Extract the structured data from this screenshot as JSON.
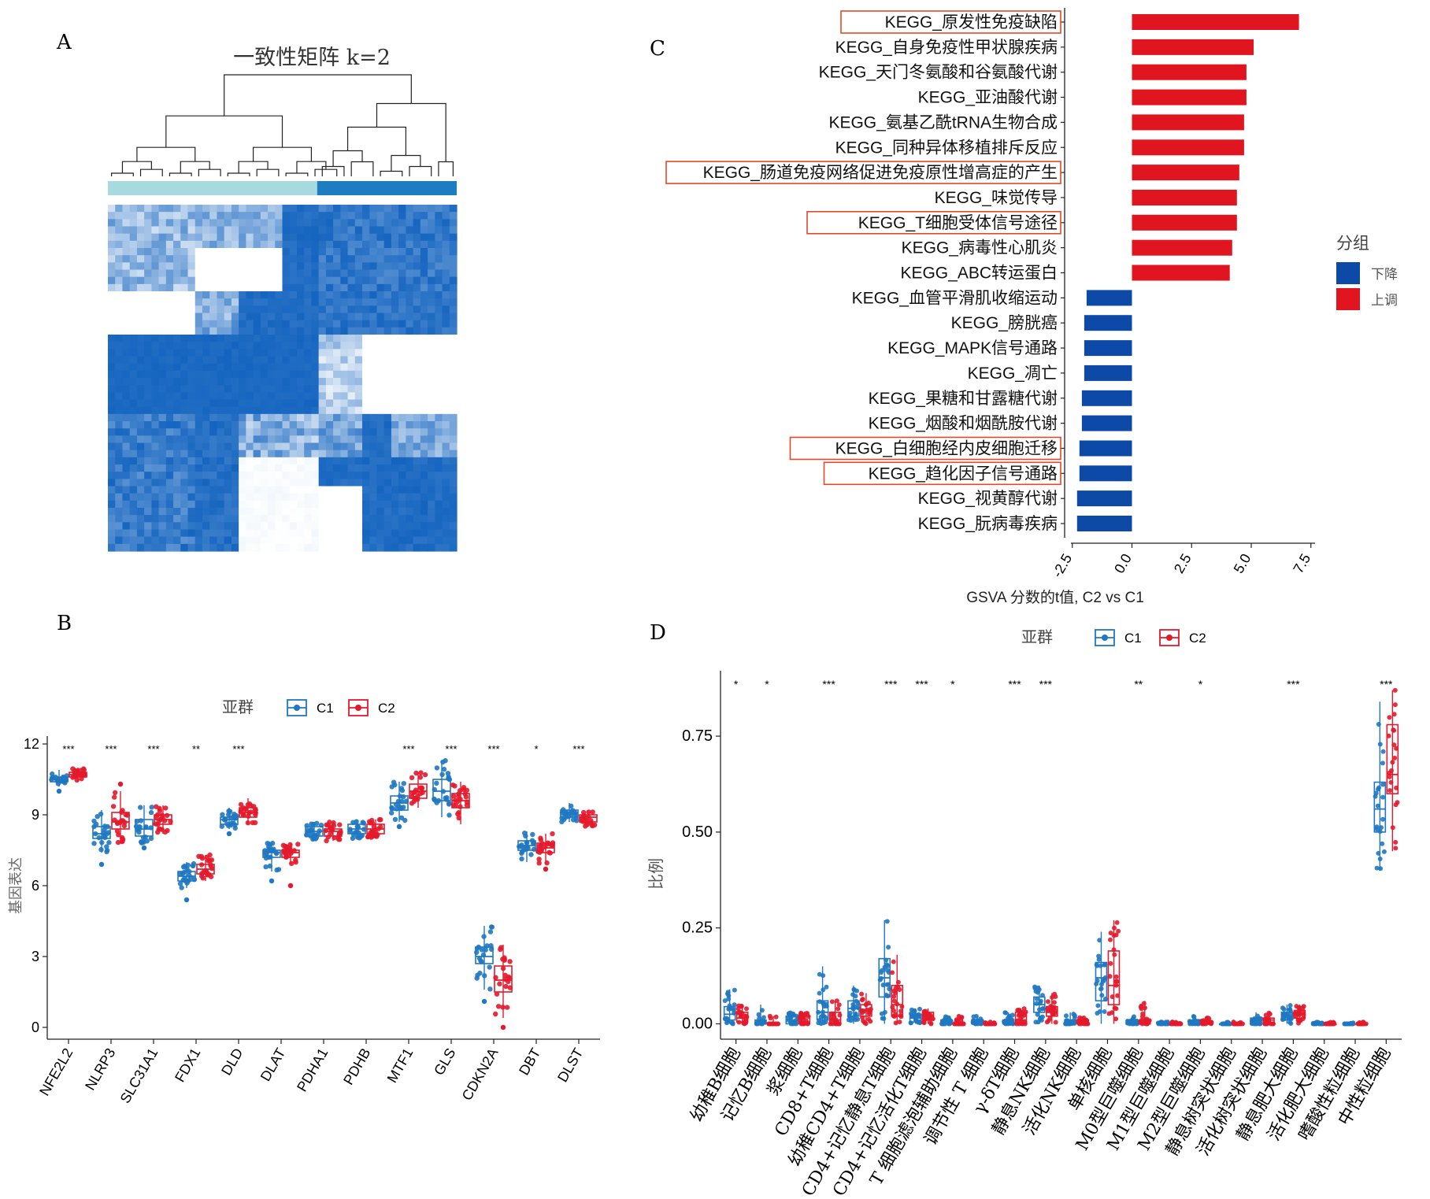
{
  "panel_labels": {
    "a": "A",
    "b": "B",
    "c": "C",
    "d": "D"
  },
  "colors": {
    "c1": "#1f78c1",
    "c2": "#e31a2c",
    "up": "#e0151f",
    "down": "#0d4aa8",
    "heat_high": "#1565c0",
    "heat_low": "#ffffff",
    "bar_c1": "#a8d8e0",
    "bar_c2": "#1c7dc1",
    "highlight": "#e04a2a"
  },
  "chart_data": [
    {
      "id": "A",
      "type": "heatmap",
      "title": "一致性矩阵 k=2",
      "clusters": [
        "C1",
        "C2"
      ],
      "cluster_fraction": [
        0.6,
        0.4
      ]
    },
    {
      "id": "B",
      "type": "box",
      "legend_title": "亚群",
      "legend": [
        "C1",
        "C2"
      ],
      "ylabel": "基因表达",
      "ylim": [
        -0.5,
        12
      ],
      "yticks": [
        0,
        3,
        6,
        9,
        12
      ],
      "categories": [
        "NFE2L2",
        "NLRP3",
        "SLC31A1",
        "FDX1",
        "DLD",
        "DLAT",
        "PDHA1",
        "PDHB",
        "MTF1",
        "GLS",
        "CDKN2A",
        "DBT",
        "DLST"
      ],
      "significance": [
        "***",
        "***",
        "***",
        "**",
        "***",
        "",
        "",
        "",
        "***",
        "***",
        "***",
        "*",
        "***"
      ],
      "series": [
        {
          "name": "C1",
          "stats": [
            [
              10.2,
              10.4,
              10.5,
              10.6,
              10.9
            ],
            [
              7.4,
              8.0,
              8.2,
              8.5,
              9.2
            ],
            [
              7.8,
              8.1,
              8.4,
              8.8,
              9.4
            ],
            [
              5.9,
              6.2,
              6.4,
              6.6,
              7.0
            ],
            [
              8.4,
              8.6,
              8.8,
              8.9,
              9.3
            ],
            [
              6.6,
              7.2,
              7.4,
              7.5,
              7.8
            ],
            [
              7.9,
              8.1,
              8.3,
              8.5,
              8.7
            ],
            [
              8.0,
              8.2,
              8.4,
              8.6,
              8.8
            ],
            [
              8.7,
              9.2,
              9.5,
              9.8,
              10.4
            ],
            [
              8.9,
              9.6,
              10.0,
              10.5,
              11.3
            ],
            [
              1.6,
              2.7,
              3.0,
              3.4,
              4.3
            ],
            [
              7.0,
              7.5,
              7.7,
              7.9,
              8.3
            ],
            [
              8.7,
              8.9,
              9.1,
              9.2,
              9.5
            ]
          ],
          "outliers": [
            [
              10.0
            ],
            [
              6.9
            ],
            [
              7.6
            ],
            [
              5.4
            ],
            [
              8.2
            ],
            [
              6.2
            ],
            [],
            [],
            [
              8.5
            ],
            [],
            [
              1.1
            ],
            [],
            []
          ]
        },
        {
          "name": "C2",
          "stats": [
            [
              10.4,
              10.6,
              10.7,
              10.8,
              11.0
            ],
            [
              7.8,
              8.4,
              8.7,
              9.1,
              10.0
            ],
            [
              8.2,
              8.6,
              8.8,
              9.0,
              9.4
            ],
            [
              6.2,
              6.5,
              6.7,
              6.9,
              7.3
            ],
            [
              8.6,
              8.9,
              9.1,
              9.3,
              9.7
            ],
            [
              6.9,
              7.2,
              7.4,
              7.5,
              7.8
            ],
            [
              7.9,
              8.1,
              8.3,
              8.4,
              8.7
            ],
            [
              8.0,
              8.2,
              8.4,
              8.6,
              8.8
            ],
            [
              9.3,
              9.7,
              10.0,
              10.3,
              10.8
            ],
            [
              8.6,
              9.3,
              9.6,
              9.9,
              10.4
            ],
            [
              0.4,
              1.5,
              2.0,
              2.6,
              3.5
            ],
            [
              6.9,
              7.4,
              7.6,
              7.8,
              8.2
            ],
            [
              8.5,
              8.7,
              8.9,
              9.0,
              9.2
            ]
          ],
          "outliers": [
            [],
            [
              10.3
            ],
            [],
            [],
            [],
            [
              6.0
            ],
            [],
            [],
            [],
            [],
            [
              0.0
            ],
            [
              6.7
            ],
            []
          ]
        }
      ]
    },
    {
      "id": "C",
      "type": "bar",
      "orientation": "horizontal",
      "legend_title": "分组",
      "legend": [
        "下降",
        "上调"
      ],
      "xlabel": "GSVA 分数的t值, C2 vs C1",
      "xlim": [
        -2.7,
        7.6
      ],
      "xticks": [
        "-2.5",
        "0.0",
        "2.5",
        "5.0",
        "7.5"
      ],
      "categories": [
        "KEGG_原发性免疫缺陷",
        "KEGG_自身免疫性甲状腺疾病",
        "KEGG_天门冬氨酸和谷氨酸代谢",
        "KEGG_亚油酸代谢",
        "KEGG_氨基乙酰tRNA生物合成",
        "KEGG_同种异体移植排斥反应",
        "KEGG_肠道免疫网络促进免疫原性增高症的产生",
        "KEGG_味觉传导",
        "KEGG_T细胞受体信号途径",
        "KEGG_病毒性心肌炎",
        "KEGG_ABC转运蛋白",
        "KEGG_血管平滑肌收缩运动",
        "KEGG_膀胱癌",
        "KEGG_MAPK信号通路",
        "KEGG_凋亡",
        "KEGG_果糖和甘露糖代谢",
        "KEGG_烟酸和烟酰胺代谢",
        "KEGG_白细胞经内皮细胞迁移",
        "KEGG_趋化因子信号通路",
        "KEGG_视黄醇代谢",
        "KEGG_朊病毒疾病"
      ],
      "values": [
        7.0,
        5.1,
        4.8,
        4.8,
        4.7,
        4.7,
        4.5,
        4.4,
        4.4,
        4.2,
        4.1,
        -1.9,
        -2.0,
        -2.0,
        -2.0,
        -2.1,
        -2.1,
        -2.2,
        -2.2,
        -2.3,
        -2.3
      ],
      "groups": [
        "上调",
        "上调",
        "上调",
        "上调",
        "上调",
        "上调",
        "上调",
        "上调",
        "上调",
        "上调",
        "上调",
        "下降",
        "下降",
        "下降",
        "下降",
        "下降",
        "下降",
        "下降",
        "下降",
        "下降",
        "下降"
      ],
      "highlighted": [
        true,
        false,
        false,
        false,
        false,
        false,
        true,
        false,
        true,
        false,
        false,
        false,
        false,
        false,
        false,
        false,
        false,
        true,
        true,
        false,
        false
      ]
    },
    {
      "id": "D",
      "type": "box",
      "legend_title": "亚群",
      "legend": [
        "C1",
        "C2"
      ],
      "ylabel": "比例",
      "ylim": [
        -0.04,
        0.9
      ],
      "yticks": [
        0.0,
        0.25,
        0.5,
        0.75
      ],
      "ytick_labels": [
        "0.00",
        "0.25",
        "0.50",
        "0.75"
      ],
      "categories": [
        "幼稚B细胞",
        "记忆B细胞",
        "浆细胞",
        "CD8+T细胞",
        "幼稚CD4+T细胞",
        "CD4+记忆静息T细胞",
        "CD4+记忆活化T细胞",
        "T 细胞滤泡辅助细胞",
        "调节性 T 细胞",
        "γ-δT细胞",
        "静息NK细胞",
        "活化NK细胞",
        "单核细胞",
        "M0型巨噬细胞",
        "M1型巨噬细胞",
        "M2型巨噬细胞",
        "静息树突状细胞",
        "活化树突状细胞",
        "静息肥大细胞",
        "活化肥大细胞",
        "嗜酸性粒细胞",
        "中性粒细胞"
      ],
      "significance": [
        "*",
        "*",
        "",
        "***",
        "",
        "***",
        "***",
        "*",
        "",
        "***",
        "***",
        "",
        "",
        "**",
        "",
        "*",
        "",
        "",
        "***",
        "",
        "",
        "***"
      ],
      "series": [
        {
          "name": "C1",
          "stats": [
            [
              0.0,
              0.01,
              0.025,
              0.045,
              0.09
            ],
            [
              0.0,
              0.0,
              0.0,
              0.01,
              0.05
            ],
            [
              0.0,
              0.0,
              0.01,
              0.02,
              0.03
            ],
            [
              0.0,
              0.01,
              0.03,
              0.06,
              0.15
            ],
            [
              0.0,
              0.02,
              0.04,
              0.06,
              0.1
            ],
            [
              0.0,
              0.07,
              0.12,
              0.17,
              0.27
            ],
            [
              0.0,
              0.005,
              0.015,
              0.025,
              0.04
            ],
            [
              0.0,
              0.0,
              0.0,
              0.01,
              0.02
            ],
            [
              0.0,
              0.0,
              0.0,
              0.01,
              0.02
            ],
            [
              0.0,
              0.0,
              0.005,
              0.01,
              0.03
            ],
            [
              0.0,
              0.03,
              0.05,
              0.07,
              0.1
            ],
            [
              0.0,
              0.0,
              0.0,
              0.01,
              0.03
            ],
            [
              0.0,
              0.06,
              0.12,
              0.16,
              0.24
            ],
            [
              0.0,
              0.0,
              0.0,
              0.01,
              0.02
            ],
            [
              0.0,
              0.0,
              0.0,
              0.0,
              0.005
            ],
            [
              0.0,
              0.0,
              0.0,
              0.01,
              0.02
            ],
            [
              0.0,
              0.0,
              0.0,
              0.0,
              0.005
            ],
            [
              0.0,
              0.0,
              0.01,
              0.015,
              0.03
            ],
            [
              0.0,
              0.01,
              0.02,
              0.03,
              0.05
            ],
            [
              0.0,
              0.0,
              0.0,
              0.0,
              0.005
            ],
            [
              0.0,
              0.0,
              0.0,
              0.0,
              0.005
            ],
            [
              0.4,
              0.5,
              0.56,
              0.63,
              0.84
            ]
          ]
        },
        {
          "name": "C2",
          "stats": [
            [
              0.0,
              0.005,
              0.015,
              0.03,
              0.05
            ],
            [
              0.0,
              0.0,
              0.0,
              0.0,
              0.02
            ],
            [
              0.0,
              0.0,
              0.005,
              0.02,
              0.03
            ],
            [
              0.0,
              0.0,
              0.01,
              0.03,
              0.06
            ],
            [
              0.0,
              0.02,
              0.035,
              0.05,
              0.08
            ],
            [
              0.0,
              0.02,
              0.05,
              0.1,
              0.18
            ],
            [
              0.0,
              0.01,
              0.02,
              0.03,
              0.04
            ],
            [
              0.0,
              0.0,
              0.0,
              0.0,
              0.02
            ],
            [
              0.0,
              0.0,
              0.0,
              0.0,
              0.005
            ],
            [
              0.0,
              0.0,
              0.01,
              0.03,
              0.04
            ],
            [
              0.0,
              0.02,
              0.03,
              0.045,
              0.08
            ],
            [
              0.0,
              0.0,
              0.0,
              0.01,
              0.02
            ],
            [
              0.0,
              0.05,
              0.1,
              0.19,
              0.27
            ],
            [
              0.0,
              0.0,
              0.0,
              0.01,
              0.06
            ],
            [
              0.0,
              0.0,
              0.0,
              0.0,
              0.005
            ],
            [
              0.0,
              0.0,
              0.0,
              0.005,
              0.02
            ],
            [
              0.0,
              0.0,
              0.0,
              0.0,
              0.005
            ],
            [
              0.0,
              0.0,
              0.01,
              0.015,
              0.03
            ],
            [
              0.0,
              0.015,
              0.025,
              0.035,
              0.05
            ],
            [
              0.0,
              0.0,
              0.0,
              0.0,
              0.005
            ],
            [
              0.0,
              0.0,
              0.0,
              0.0,
              0.005
            ],
            [
              0.45,
              0.6,
              0.65,
              0.78,
              0.87
            ]
          ]
        }
      ]
    }
  ]
}
